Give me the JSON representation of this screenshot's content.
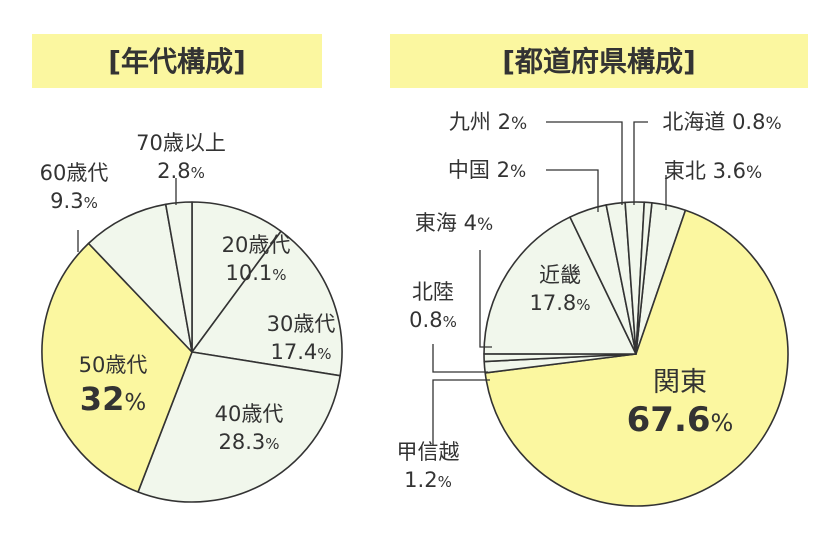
{
  "colors": {
    "highlight": "#fbf7a0",
    "light": "#f1f7ec",
    "outline": "#333333",
    "text": "#333333",
    "title_bg": "#fbf7a0"
  },
  "chart_data": [
    {
      "type": "pie",
      "title": "[年代構成]",
      "start_angle_deg": 0,
      "direction": "clockwise",
      "slices": [
        {
          "label": "20歳代",
          "value": 10.1,
          "value_text": "10.1",
          "unit": "%",
          "highlight": false
        },
        {
          "label": "30歳代",
          "value": 17.4,
          "value_text": "17.4",
          "unit": "%",
          "highlight": false
        },
        {
          "label": "40歳代",
          "value": 28.3,
          "value_text": "28.3",
          "unit": "%",
          "highlight": false
        },
        {
          "label": "50歳代",
          "value": 32,
          "value_text": "32",
          "unit": "%",
          "highlight": true
        },
        {
          "label": "60歳代",
          "value": 9.3,
          "value_text": "9.3",
          "unit": "%",
          "highlight": false
        },
        {
          "label": "70歳以上",
          "value": 2.8,
          "value_text": "2.8",
          "unit": "%",
          "highlight": false
        }
      ]
    },
    {
      "type": "pie",
      "title": "[都道府県構成]",
      "start_angle_deg": 6,
      "direction": "clockwise",
      "slices": [
        {
          "label": "東北",
          "value": 3.6,
          "value_text": "3.6",
          "unit": "%",
          "highlight": false
        },
        {
          "label": "関東",
          "value": 67.6,
          "value_text": "67.6",
          "unit": "%",
          "highlight": true
        },
        {
          "label": "甲信越",
          "value": 1.2,
          "value_text": "1.2",
          "unit": "%",
          "highlight": false
        },
        {
          "label": "北陸",
          "value": 0.8,
          "value_text": "0.8",
          "unit": "%",
          "highlight": false
        },
        {
          "label": "近畿",
          "value": 17.8,
          "value_text": "17.8",
          "unit": "%",
          "highlight": false
        },
        {
          "label": "東海",
          "value": 4,
          "value_text": "4",
          "unit": "%",
          "highlight": false
        },
        {
          "label": "中国",
          "value": 2,
          "value_text": "2",
          "unit": "%",
          "highlight": false
        },
        {
          "label": "九州",
          "value": 2,
          "value_text": "2",
          "unit": "%",
          "highlight": false
        },
        {
          "label": "北海道",
          "value": 0.8,
          "value_text": "0.8",
          "unit": "%",
          "highlight": false
        }
      ]
    }
  ]
}
